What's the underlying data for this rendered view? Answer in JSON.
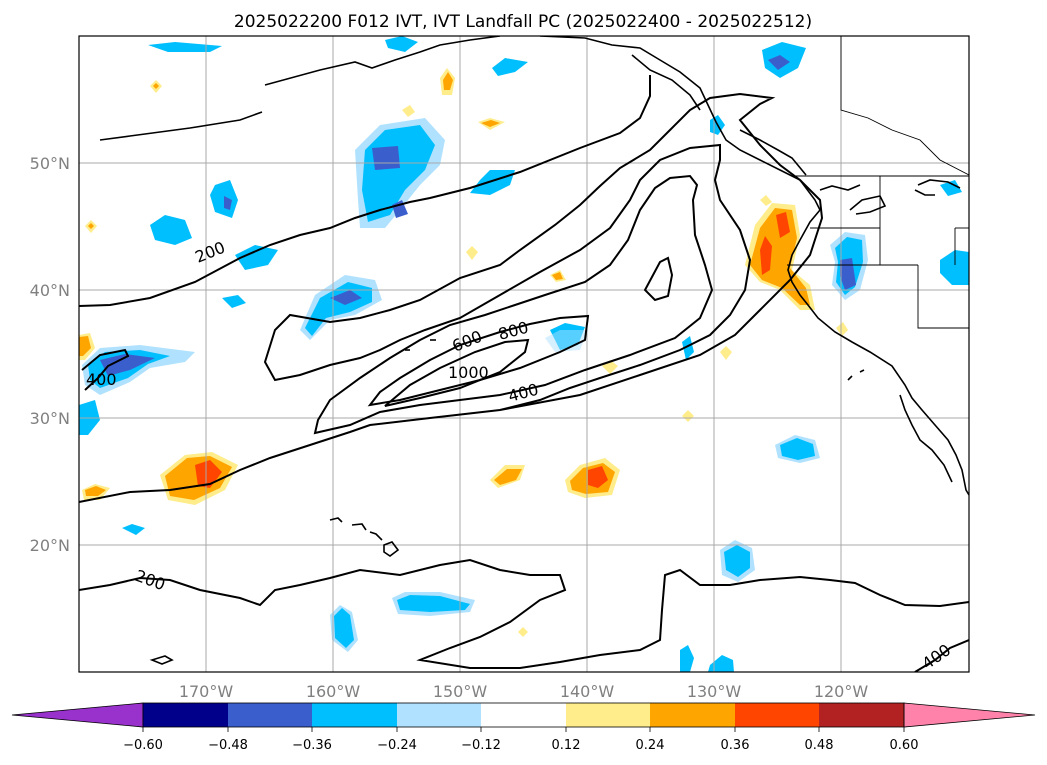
{
  "title": "2025022200 F012 IVT, IVT Landfall PC (2025022400 - 2025022512)",
  "lat_ticks": [
    "50°N",
    "40°N",
    "30°N",
    "20°N"
  ],
  "lon_ticks": [
    "170°W",
    "160°W",
    "150°W",
    "140°W",
    "130°W",
    "120°W"
  ],
  "colorbar": {
    "tick_labels": [
      "−0.60",
      "−0.48",
      "−0.36",
      "−0.24",
      "−0.12",
      "0.12",
      "0.24",
      "0.36",
      "0.48",
      "0.60"
    ],
    "colors": [
      "#9932cc",
      "#00008b",
      "#3a5fcd",
      "#00bfff",
      "#b0e2ff",
      "#ffffff",
      "#ffec8b",
      "#ffa500",
      "#ff4500",
      "#b22222",
      "#ff82ab"
    ]
  },
  "contour_labels": [
    "200",
    "200",
    "400",
    "400",
    "400",
    "600",
    "800",
    "1000"
  ],
  "chart_data": {
    "type": "contour-map",
    "title": "2025022200 F012 IVT, IVT Landfall PC (2025022400 - 2025022512)",
    "extent": {
      "lon": [
        -180,
        -110
      ],
      "lat": [
        10,
        60
      ]
    },
    "ivt_contour_levels": [
      200,
      400,
      600,
      800,
      1000
    ],
    "pc_levels": [
      -0.6,
      -0.48,
      -0.36,
      -0.24,
      -0.12,
      0.12,
      0.24,
      0.36,
      0.48,
      0.6
    ]
  }
}
